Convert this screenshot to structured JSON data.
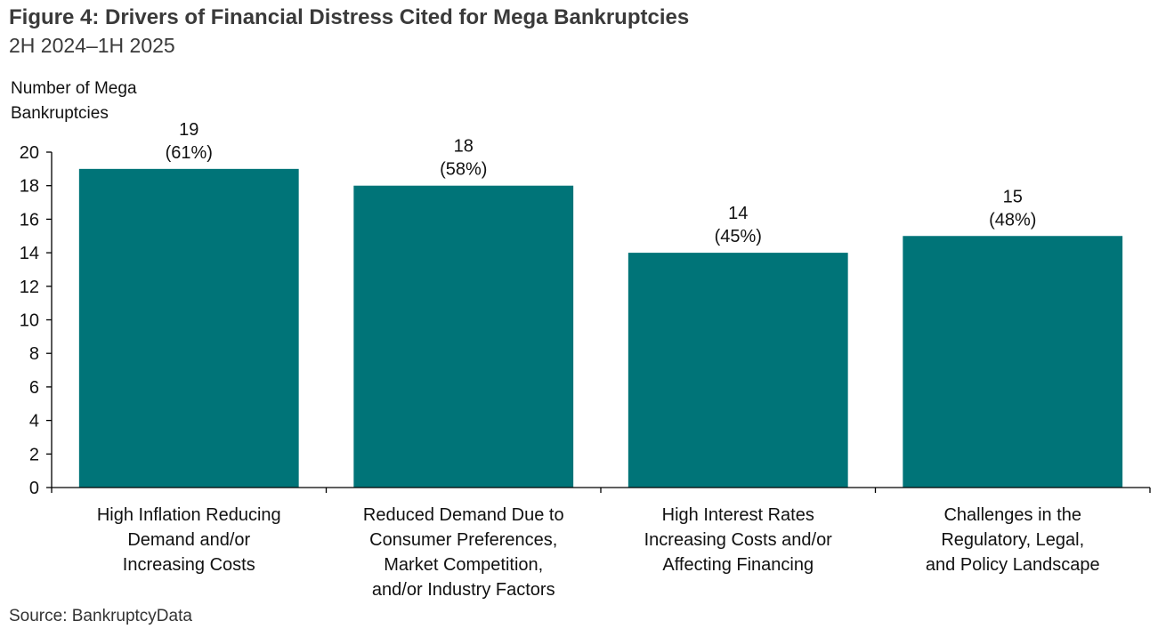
{
  "title": "Figure 4: Drivers of Financial Distress Cited for Mega Bankruptcies",
  "subtitle": "2H 2024–1H 2025",
  "source": "Source: BankruptcyData",
  "colors": {
    "bar": "#007478",
    "axis": "#000000"
  },
  "chart_data": {
    "type": "bar",
    "title": "Figure 4: Drivers of Financial Distress Cited for Mega Bankruptcies",
    "subtitle": "2H 2024–1H 2025",
    "ylabel": [
      "Number of Mega",
      "Bankruptcies"
    ],
    "xlabel": "",
    "ylim": [
      0,
      20
    ],
    "yticks": [
      0,
      2,
      4,
      6,
      8,
      10,
      12,
      14,
      16,
      18,
      20
    ],
    "grid": false,
    "categories": [
      [
        "High Inflation Reducing",
        "Demand and/or",
        "Increasing Costs"
      ],
      [
        "Reduced Demand Due to",
        "Consumer Preferences,",
        "Market Competition,",
        "and/or Industry Factors"
      ],
      [
        "High Interest Rates",
        "Increasing Costs and/or",
        "Affecting Financing"
      ],
      [
        "Challenges in the",
        "Regulatory, Legal,",
        "and Policy Landscape"
      ]
    ],
    "values": [
      19,
      18,
      14,
      15
    ],
    "data_labels": [
      [
        "19",
        "(61%)"
      ],
      [
        "18",
        "(58%)"
      ],
      [
        "14",
        "(45%)"
      ],
      [
        "15",
        "(48%)"
      ]
    ]
  }
}
